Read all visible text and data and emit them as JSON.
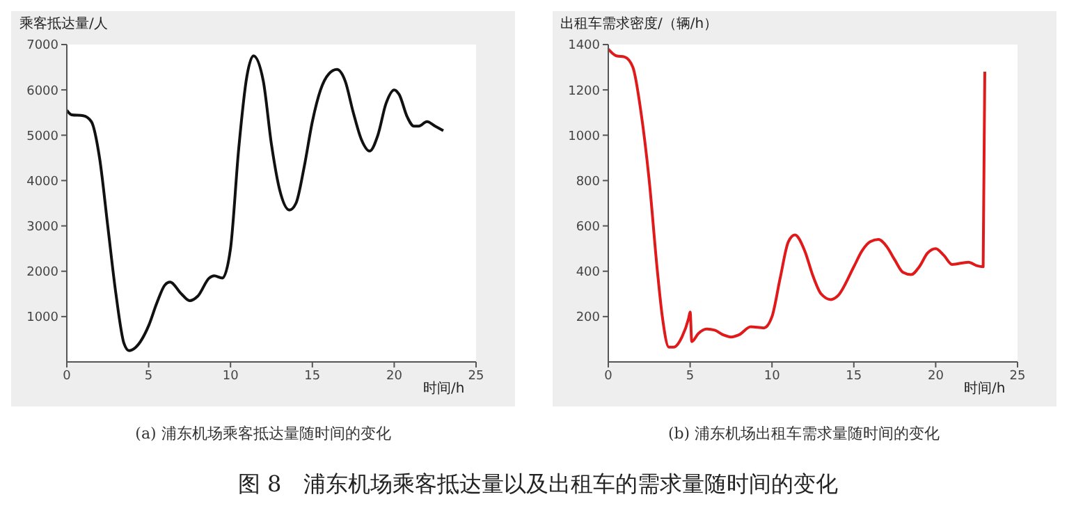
{
  "chart_data": [
    {
      "type": "line",
      "title": "(a) 浦东机场乘客抵达量随时间的变化",
      "ylabel": "乘客抵达量/人",
      "xlabel": "时间/h",
      "xlim": [
        0,
        25
      ],
      "xticks": [
        0,
        5,
        10,
        15,
        20,
        25
      ],
      "ylim": [
        0,
        7000
      ],
      "yticks": [
        1000,
        2000,
        3000,
        4000,
        5000,
        6000,
        7000
      ],
      "grid": false,
      "marker": "none",
      "line_style": "solid",
      "annotations": [
        "图 8　浦东机场乘客抵达量以及出租车的需求量随时间的变化"
      ],
      "series": [
        {
          "color": "#111111",
          "x": [
            0,
            0.3,
            1,
            1.5,
            2,
            2.5,
            3,
            3.5,
            3.8,
            4.2,
            5,
            5.5,
            6,
            6.3,
            7,
            7.5,
            8,
            8.7,
            9,
            9.5,
            10,
            10.5,
            11,
            11.4,
            12,
            12.5,
            13,
            13.6,
            14,
            14.5,
            15,
            15.5,
            16,
            16.5,
            17,
            17.5,
            18,
            18.5,
            19,
            19.5,
            20,
            20.3,
            20.8,
            21.2,
            21.5,
            22,
            22.5,
            23
          ],
          "values": [
            5550,
            5450,
            5430,
            5300,
            4500,
            3000,
            1500,
            400,
            250,
            320,
            800,
            1300,
            1700,
            1760,
            1500,
            1350,
            1450,
            1850,
            1900,
            1850,
            2500,
            4700,
            6300,
            6750,
            6200,
            4800,
            3800,
            3350,
            3500,
            4300,
            5300,
            6000,
            6350,
            6450,
            6200,
            5500,
            4900,
            4650,
            5000,
            5700,
            6000,
            5900,
            5400,
            5200,
            5200,
            5300,
            5200,
            5100
          ]
        }
      ]
    },
    {
      "type": "line",
      "title": "(b) 浦东机场出租车需求量随时间的变化",
      "ylabel": "出租车需求密度/（辆/h）",
      "xlabel": "时间/h",
      "xlim": [
        0,
        25
      ],
      "xticks": [
        0,
        5,
        10,
        15,
        20,
        25
      ],
      "ylim": [
        0,
        1400
      ],
      "yticks": [
        200,
        400,
        600,
        800,
        1000,
        1200,
        1400
      ],
      "grid": false,
      "marker": "none",
      "line_style": "solid",
      "series": [
        {
          "color": "#e01a1a",
          "x": [
            0,
            0.5,
            1,
            1.5,
            2,
            2.5,
            3,
            3.3,
            3.7,
            4,
            4.5,
            4.9,
            5,
            5.1,
            5.5,
            6,
            6.5,
            7,
            7.5,
            8,
            8.7,
            9.5,
            10,
            10.5,
            11,
            11.4,
            12,
            12.5,
            13,
            13.6,
            14,
            15,
            15.5,
            16,
            16.5,
            17,
            17.5,
            18,
            18.5,
            19,
            19.5,
            20,
            20.5,
            21,
            22,
            22.5,
            22.9,
            23
          ],
          "values": [
            1380,
            1350,
            1345,
            1300,
            1100,
            800,
            400,
            200,
            65,
            65,
            110,
            190,
            220,
            90,
            125,
            145,
            140,
            120,
            110,
            120,
            155,
            150,
            200,
            370,
            530,
            560,
            490,
            380,
            300,
            275,
            290,
            420,
            490,
            530,
            540,
            510,
            450,
            395,
            385,
            420,
            480,
            500,
            470,
            430,
            440,
            425,
            420,
            1280
          ]
        }
      ]
    }
  ]
}
